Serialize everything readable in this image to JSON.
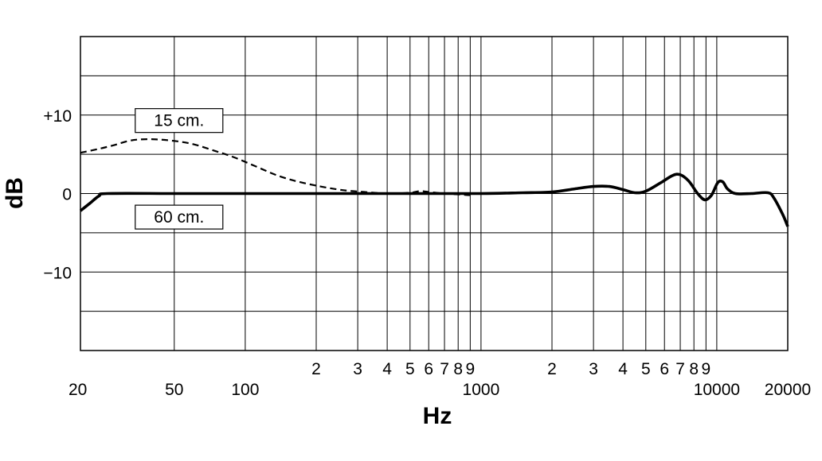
{
  "chart_data": {
    "type": "line",
    "xlabel": "Hz",
    "ylabel": "dB",
    "xscale": "log",
    "xlim": [
      20,
      20000
    ],
    "ylim": [
      -20,
      20
    ],
    "grid": true,
    "y_ticks": [
      {
        "value": 10,
        "label": "+10"
      },
      {
        "value": 0,
        "label": "0"
      },
      {
        "value": -10,
        "label": "−10"
      }
    ],
    "x_tick_labels": [
      {
        "value": 20,
        "label": "20",
        "row": "lower"
      },
      {
        "value": 50,
        "label": "50",
        "row": "lower"
      },
      {
        "value": 100,
        "label": "100",
        "row": "lower"
      },
      {
        "value": 200,
        "label": "2",
        "row": "upper"
      },
      {
        "value": 300,
        "label": "3",
        "row": "upper"
      },
      {
        "value": 400,
        "label": "4",
        "row": "upper"
      },
      {
        "value": 500,
        "label": "5",
        "row": "upper"
      },
      {
        "value": 600,
        "label": "6",
        "row": "upper"
      },
      {
        "value": 700,
        "label": "7",
        "row": "upper"
      },
      {
        "value": 800,
        "label": "8",
        "row": "upper"
      },
      {
        "value": 900,
        "label": "9",
        "row": "upper"
      },
      {
        "value": 1000,
        "label": "1000",
        "row": "lower"
      },
      {
        "value": 2000,
        "label": "2",
        "row": "upper"
      },
      {
        "value": 3000,
        "label": "3",
        "row": "upper"
      },
      {
        "value": 4000,
        "label": "4",
        "row": "upper"
      },
      {
        "value": 5000,
        "label": "5",
        "row": "upper"
      },
      {
        "value": 6000,
        "label": "6",
        "row": "upper"
      },
      {
        "value": 7000,
        "label": "7",
        "row": "upper"
      },
      {
        "value": 8000,
        "label": "8",
        "row": "upper"
      },
      {
        "value": 9000,
        "label": "9",
        "row": "upper"
      },
      {
        "value": 10000,
        "label": "10000",
        "row": "lower"
      },
      {
        "value": 20000,
        "label": "20000",
        "row": "lower"
      }
    ],
    "x_gridlines": [
      50,
      100,
      200,
      300,
      400,
      500,
      600,
      700,
      800,
      900,
      1000,
      2000,
      3000,
      4000,
      5000,
      6000,
      7000,
      8000,
      9000,
      10000
    ],
    "y_gridlines": [
      -15,
      -10,
      -5,
      0,
      5,
      10,
      15
    ],
    "annotations": [
      {
        "text": "15 cm.",
        "x": 50,
        "y": 9.3
      },
      {
        "text": "60 cm.",
        "x": 50,
        "y": -3
      }
    ],
    "series": [
      {
        "style": "dashed",
        "color": "#000000",
        "points": [
          [
            20,
            5.2
          ],
          [
            24,
            5.7
          ],
          [
            28,
            6.2
          ],
          [
            32,
            6.7
          ],
          [
            36,
            6.9
          ],
          [
            42,
            6.9
          ],
          [
            50,
            6.7
          ],
          [
            60,
            6.3
          ],
          [
            75,
            5.4
          ],
          [
            90,
            4.6
          ],
          [
            110,
            3.5
          ],
          [
            140,
            2.2
          ],
          [
            180,
            1.3
          ],
          [
            250,
            0.5
          ],
          [
            320,
            0.2
          ],
          [
            400,
            0.0
          ],
          [
            500,
            0.1
          ],
          [
            550,
            0.3
          ],
          [
            600,
            0.2
          ],
          [
            700,
            0.0
          ],
          [
            800,
            -0.1
          ],
          [
            900,
            -0.2
          ],
          [
            950,
            0.0
          ],
          [
            1000,
            0.0
          ],
          [
            1500,
            0.1
          ]
        ]
      },
      {
        "style": "solid",
        "color": "#000000",
        "points": [
          [
            20,
            -2.2
          ],
          [
            22,
            -1.2
          ],
          [
            24,
            -0.3
          ],
          [
            26,
            0.0
          ],
          [
            50,
            0.0
          ],
          [
            100,
            0.0
          ],
          [
            200,
            0.0
          ],
          [
            500,
            0.0
          ],
          [
            1000,
            0.0
          ],
          [
            1500,
            0.1
          ],
          [
            2000,
            0.2
          ],
          [
            2500,
            0.6
          ],
          [
            3000,
            0.9
          ],
          [
            3500,
            0.9
          ],
          [
            4000,
            0.5
          ],
          [
            4500,
            0.1
          ],
          [
            5000,
            0.3
          ],
          [
            5800,
            1.4
          ],
          [
            6500,
            2.3
          ],
          [
            7000,
            2.4
          ],
          [
            7600,
            1.6
          ],
          [
            8300,
            0.0
          ],
          [
            8900,
            -0.8
          ],
          [
            9500,
            -0.2
          ],
          [
            10100,
            1.4
          ],
          [
            10600,
            1.5
          ],
          [
            11100,
            0.6
          ],
          [
            12000,
            0.0
          ],
          [
            14000,
            0.0
          ],
          [
            16500,
            0.1
          ],
          [
            17500,
            -0.6
          ],
          [
            19000,
            -2.6
          ],
          [
            20000,
            -4.2
          ]
        ]
      }
    ]
  }
}
